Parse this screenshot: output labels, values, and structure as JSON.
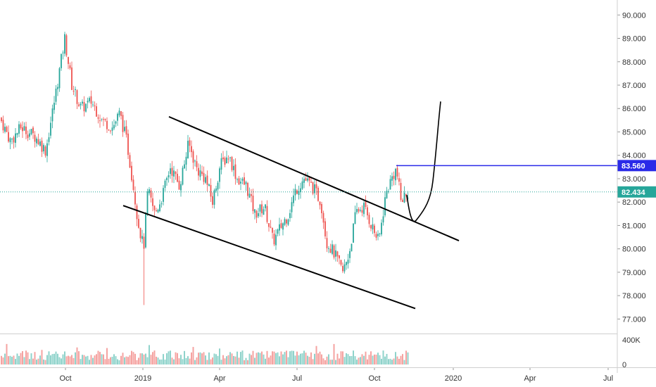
{
  "chart_data": {
    "type": "candlestick",
    "price_axis": {
      "ticks": [
        "77.000",
        "78.000",
        "79.000",
        "80.000",
        "81.000",
        "82.000",
        "83.000",
        "84.000",
        "85.000",
        "86.000",
        "87.000",
        "88.000",
        "89.000",
        "90.000"
      ],
      "min": 76.5,
      "max": 90.4
    },
    "volume_axis": {
      "ticks": [
        "0",
        "400K"
      ],
      "max": 400000
    },
    "time_axis": {
      "ticks": [
        "Oct",
        "2019",
        "Apr",
        "Jul",
        "Oct",
        "2020",
        "Apr",
        "Jul"
      ]
    },
    "last_price": {
      "label": "82.434",
      "value": 82.434,
      "color": "#26a69a"
    },
    "resistance": {
      "label": "83.560",
      "value": 83.56,
      "color": "#2a2ae8"
    },
    "colors": {
      "up": "#26a69a",
      "down": "#ef5350",
      "vol_up": "#8fd3cb",
      "vol_down": "#f5a3a1",
      "drawing": "#000000"
    },
    "price_path": [
      [
        0,
        85.6
      ],
      [
        15,
        84.6
      ],
      [
        30,
        85.2
      ],
      [
        50,
        84.8
      ],
      [
        65,
        84.2
      ],
      [
        80,
        86.8
      ],
      [
        92,
        89.0
      ],
      [
        102,
        87.0
      ],
      [
        115,
        86.0
      ],
      [
        130,
        86.3
      ],
      [
        145,
        85.5
      ],
      [
        160,
        85.2
      ],
      [
        170,
        85.8
      ],
      [
        180,
        84.6
      ],
      [
        188,
        83.0
      ],
      [
        196,
        81.2
      ],
      [
        204,
        80.0
      ],
      [
        210,
        82.5
      ],
      [
        220,
        81.5
      ],
      [
        230,
        82.2
      ],
      [
        242,
        83.5
      ],
      [
        255,
        82.7
      ],
      [
        268,
        84.5
      ],
      [
        280,
        83.4
      ],
      [
        292,
        83.0
      ],
      [
        302,
        82.0
      ],
      [
        313,
        83.6
      ],
      [
        325,
        84.0
      ],
      [
        337,
        83.0
      ],
      [
        350,
        82.7
      ],
      [
        362,
        81.5
      ],
      [
        376,
        81.8
      ],
      [
        388,
        80.3
      ],
      [
        400,
        81.0
      ],
      [
        410,
        81.5
      ],
      [
        420,
        82.5
      ],
      [
        432,
        83.0
      ],
      [
        445,
        82.6
      ],
      [
        456,
        82.0
      ],
      [
        464,
        80.3
      ],
      [
        475,
        79.8
      ],
      [
        487,
        79.0
      ],
      [
        496,
        79.8
      ],
      [
        506,
        81.6
      ],
      [
        517,
        81.8
      ],
      [
        528,
        81.0
      ],
      [
        538,
        80.3
      ],
      [
        548,
        82.3
      ],
      [
        556,
        83.0
      ],
      [
        563,
        83.4
      ],
      [
        570,
        82.0
      ],
      [
        578,
        82.434
      ]
    ]
  }
}
